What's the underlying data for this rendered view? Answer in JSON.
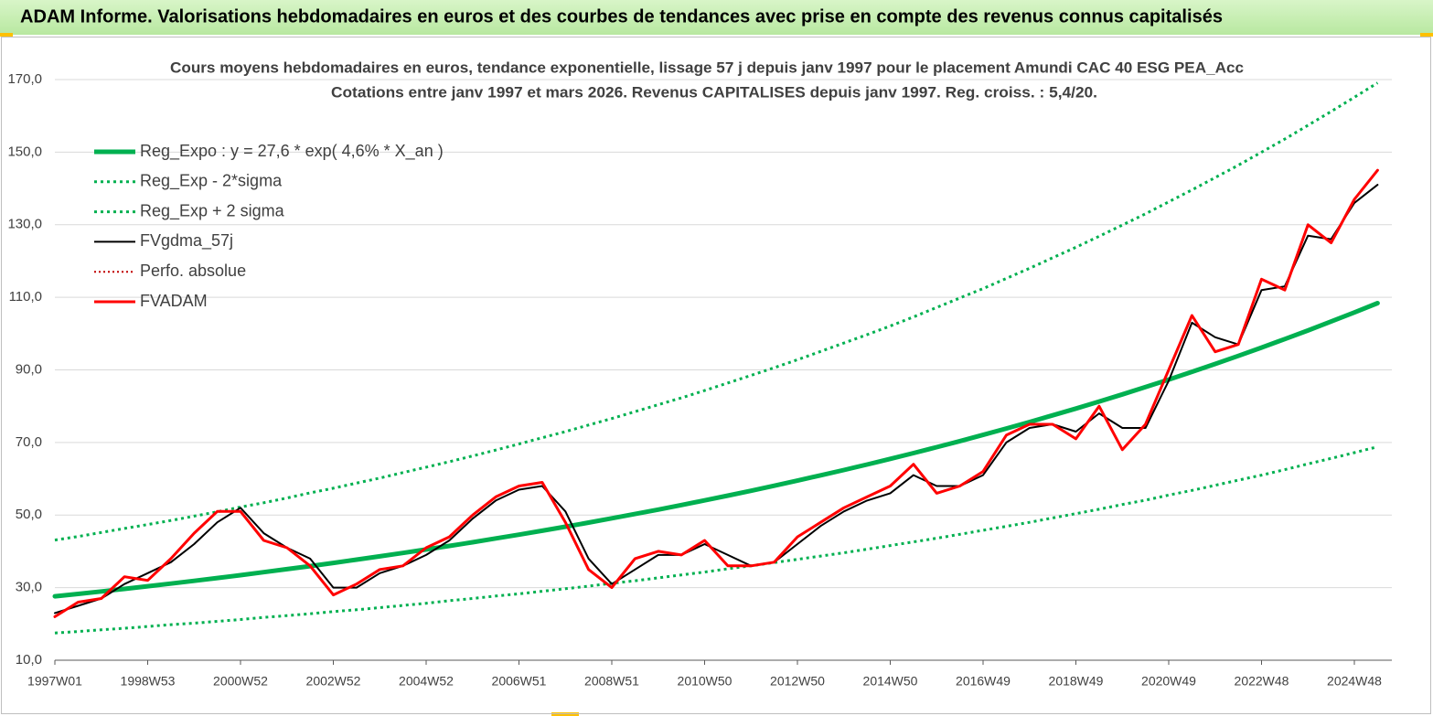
{
  "header": {
    "title": "ADAM Informe. Valorisations hebdomadaires en euros et des courbes de tendances avec prise en compte des revenus connus capitalisés"
  },
  "chart_data": {
    "type": "line",
    "title": "Cours moyens hebdomadaires en euros, tendance exponentielle, lissage 57 j depuis janv 1997  pour le placement Amundi CAC 40 ESG PEA_Acc",
    "subtitle": "Cotations entre janv 1997 et mars 2026. Revenus  CAPITALISES  depuis janv 1997. Reg. croiss. : 5,4/20.",
    "categories": [
      "1997W01",
      null,
      null,
      null,
      "1998W53",
      null,
      null,
      null,
      "2000W52",
      null,
      null,
      null,
      "2002W52",
      null,
      null,
      null,
      "2004W52",
      null,
      null,
      null,
      "2006W51",
      null,
      null,
      null,
      "2008W51",
      null,
      null,
      null,
      "2010W50",
      null,
      null,
      null,
      "2012W50",
      null,
      null,
      null,
      "2014W50",
      null,
      null,
      null,
      "2016W49",
      null,
      null,
      null,
      "2018W49",
      null,
      null,
      null,
      "2020W49",
      null,
      null,
      null,
      "2022W48",
      null,
      null,
      null,
      "2024W48",
      null
    ],
    "ylim": [
      10,
      170
    ],
    "yticks": [
      {
        "value": 10,
        "label": "10,0"
      },
      {
        "value": 30,
        "label": "30,0"
      },
      {
        "value": 50,
        "label": "50,0"
      },
      {
        "value": 70,
        "label": "70,0"
      },
      {
        "value": 90,
        "label": "90,0"
      },
      {
        "value": 110,
        "label": "110,0"
      },
      {
        "value": 130,
        "label": "130,0"
      },
      {
        "value": 150,
        "label": "150,0"
      },
      {
        "value": 170,
        "label": "170,0"
      }
    ],
    "grid": true,
    "legend": "top-left",
    "series": [
      {
        "name": "Reg_Expo : y = 27,6 * exp( 4,6% *  X_an )",
        "color": "#00b050",
        "style": "solid",
        "width": 5,
        "values": [
          27.6,
          28.27,
          28.96,
          29.66,
          30.38,
          31.12,
          31.88,
          32.65,
          33.44,
          34.26,
          35.09,
          35.94,
          36.81,
          37.71,
          38.62,
          39.56,
          40.52,
          41.5,
          42.51,
          43.55,
          44.6,
          45.69,
          46.8,
          47.93,
          49.1,
          50.29,
          51.51,
          52.76,
          54.04,
          55.36,
          56.7,
          58.08,
          59.49,
          60.94,
          62.42,
          63.93,
          65.48,
          67.08,
          68.7,
          70.37,
          72.08,
          73.84,
          75.63,
          77.47,
          79.35,
          81.27,
          83.25,
          85.27,
          87.34,
          89.46,
          91.64,
          93.86,
          96.14,
          98.48,
          100.87,
          103.32,
          105.83,
          108.4
        ]
      },
      {
        "name": "Reg_Exp - 2*sigma",
        "color": "#00b050",
        "style": "dotted",
        "width": 3,
        "values": [
          17.5,
          17.9,
          18.4,
          18.8,
          19.3,
          19.8,
          20.2,
          20.7,
          21.2,
          21.8,
          22.3,
          22.8,
          23.4,
          23.9,
          24.5,
          25.1,
          25.7,
          26.4,
          27.0,
          27.7,
          28.3,
          29.0,
          29.7,
          30.4,
          31.2,
          31.9,
          32.7,
          33.5,
          34.3,
          35.2,
          36.0,
          36.9,
          37.8,
          38.7,
          39.6,
          40.6,
          41.6,
          42.6,
          43.6,
          44.7,
          45.8,
          46.9,
          48.0,
          49.2,
          50.4,
          51.6,
          52.9,
          54.1,
          55.5,
          56.8,
          58.2,
          59.6,
          61.0,
          62.5,
          64.1,
          65.6,
          67.2,
          68.8
        ]
      },
      {
        "name": "Reg_Exp + 2 sigma",
        "color": "#00b050",
        "style": "dotted",
        "width": 3,
        "values": [
          43.1,
          44.1,
          45.2,
          46.3,
          47.4,
          48.5,
          49.7,
          50.9,
          52.2,
          53.4,
          54.7,
          56.1,
          57.4,
          58.8,
          60.2,
          61.7,
          63.2,
          64.7,
          66.3,
          67.9,
          69.6,
          71.3,
          73.0,
          74.8,
          76.6,
          78.5,
          80.4,
          82.3,
          84.3,
          86.4,
          88.5,
          90.6,
          92.8,
          95.1,
          97.4,
          99.7,
          102.1,
          104.6,
          107.2,
          109.8,
          112.4,
          115.2,
          118.0,
          120.9,
          123.8,
          126.8,
          129.9,
          133.0,
          136.3,
          139.6,
          143.0,
          146.4,
          150.0,
          153.6,
          157.4,
          161.2,
          165.1,
          169.1
        ]
      },
      {
        "name": "FVgdma_57j",
        "color": "#000000",
        "style": "solid",
        "width": 2,
        "values": [
          23,
          25,
          27,
          31,
          34,
          37,
          42,
          48,
          52,
          45,
          41,
          38,
          30,
          30,
          34,
          36,
          39,
          43,
          49,
          54,
          57,
          58,
          51,
          38,
          31,
          35,
          39,
          39,
          42,
          39,
          36,
          37,
          42,
          47,
          51,
          54,
          56,
          61,
          58,
          58,
          61,
          70,
          74,
          75,
          73,
          78,
          74,
          74,
          87,
          103,
          99,
          97,
          112,
          113,
          127,
          126,
          136,
          141
        ]
      },
      {
        "name": "Perfo. absolue",
        "color": "#c00000",
        "style": "dotted",
        "width": 2
      },
      {
        "name": "FVADAM",
        "color": "#ff0000",
        "style": "solid",
        "width": 3,
        "values": [
          22,
          26,
          27,
          33,
          32,
          38,
          45,
          51,
          51,
          43,
          41,
          36,
          28,
          31,
          35,
          36,
          41,
          44,
          50,
          55,
          58,
          59,
          48,
          35,
          30,
          38,
          40,
          39,
          43,
          36,
          36,
          37,
          44,
          48,
          52,
          55,
          58,
          64,
          56,
          58,
          62,
          72,
          75,
          75,
          71,
          80,
          68,
          75,
          90,
          105,
          95,
          97,
          115,
          112,
          130,
          125,
          137,
          145
        ]
      }
    ]
  }
}
